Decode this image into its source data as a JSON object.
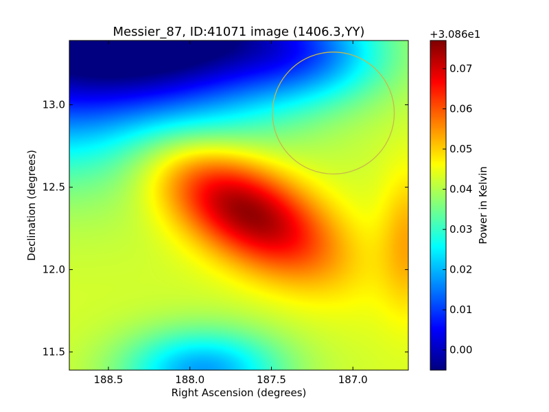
{
  "chart_data": {
    "type": "heatmap",
    "title": "Messier_87, ID:41071 image (1406.3,YY)",
    "xlabel": "Right Ascension (degrees)",
    "ylabel": "Declination (degrees)",
    "colorbar_label": "Power in Kelvin",
    "colorbar_offset": "+3.086e1",
    "colormap": "jet",
    "xlim": [
      188.74,
      186.66
    ],
    "ylim": [
      11.39,
      13.39
    ],
    "x_ticks": [
      188.5,
      188.0,
      187.5,
      187.0
    ],
    "x_tick_labels": [
      "188.5",
      "188.0",
      "187.5",
      "187.0"
    ],
    "y_ticks": [
      11.5,
      12.0,
      12.5,
      13.0
    ],
    "y_tick_labels": [
      "11.5",
      "12.0",
      "12.5",
      "13.0"
    ],
    "color_range": [
      -0.005,
      0.077
    ],
    "colorbar_ticks": [
      0.0,
      0.01,
      0.02,
      0.03,
      0.04,
      0.05,
      0.06,
      0.07
    ],
    "colorbar_tick_labels": [
      "0.00",
      "0.01",
      "0.02",
      "0.03",
      "0.04",
      "0.05",
      "0.06",
      "0.07"
    ],
    "base_level": 0.043,
    "features": [
      {
        "kind": "peak",
        "ra": 187.66,
        "dec": 12.36,
        "amplitude": 0.034,
        "sigma_ra": 0.42,
        "sigma_dec": 0.2,
        "rotation_deg": 30
      },
      {
        "kind": "trough",
        "ra": 188.75,
        "dec": 13.45,
        "amplitude": -0.05,
        "sigma_ra": 0.75,
        "sigma_dec": 0.5,
        "rotation_deg": 0
      },
      {
        "kind": "trough",
        "ra": 187.9,
        "dec": 13.5,
        "amplitude": -0.025,
        "sigma_ra": 0.5,
        "sigma_dec": 0.35,
        "rotation_deg": 0
      },
      {
        "kind": "trough",
        "ra": 187.25,
        "dec": 13.3,
        "amplitude": -0.018,
        "sigma_ra": 0.35,
        "sigma_dec": 0.2,
        "rotation_deg": 0
      },
      {
        "kind": "trough",
        "ra": 187.92,
        "dec": 11.38,
        "amplitude": -0.025,
        "sigma_ra": 0.35,
        "sigma_dec": 0.18,
        "rotation_deg": 0
      },
      {
        "kind": "peak",
        "ra": 186.66,
        "dec": 12.17,
        "amplitude": 0.01,
        "sigma_ra": 0.12,
        "sigma_dec": 0.3,
        "rotation_deg": 0
      }
    ],
    "circle": {
      "ra": 187.12,
      "dec": 12.95,
      "radius_deg": 0.37,
      "color": "#c8b84a"
    }
  }
}
